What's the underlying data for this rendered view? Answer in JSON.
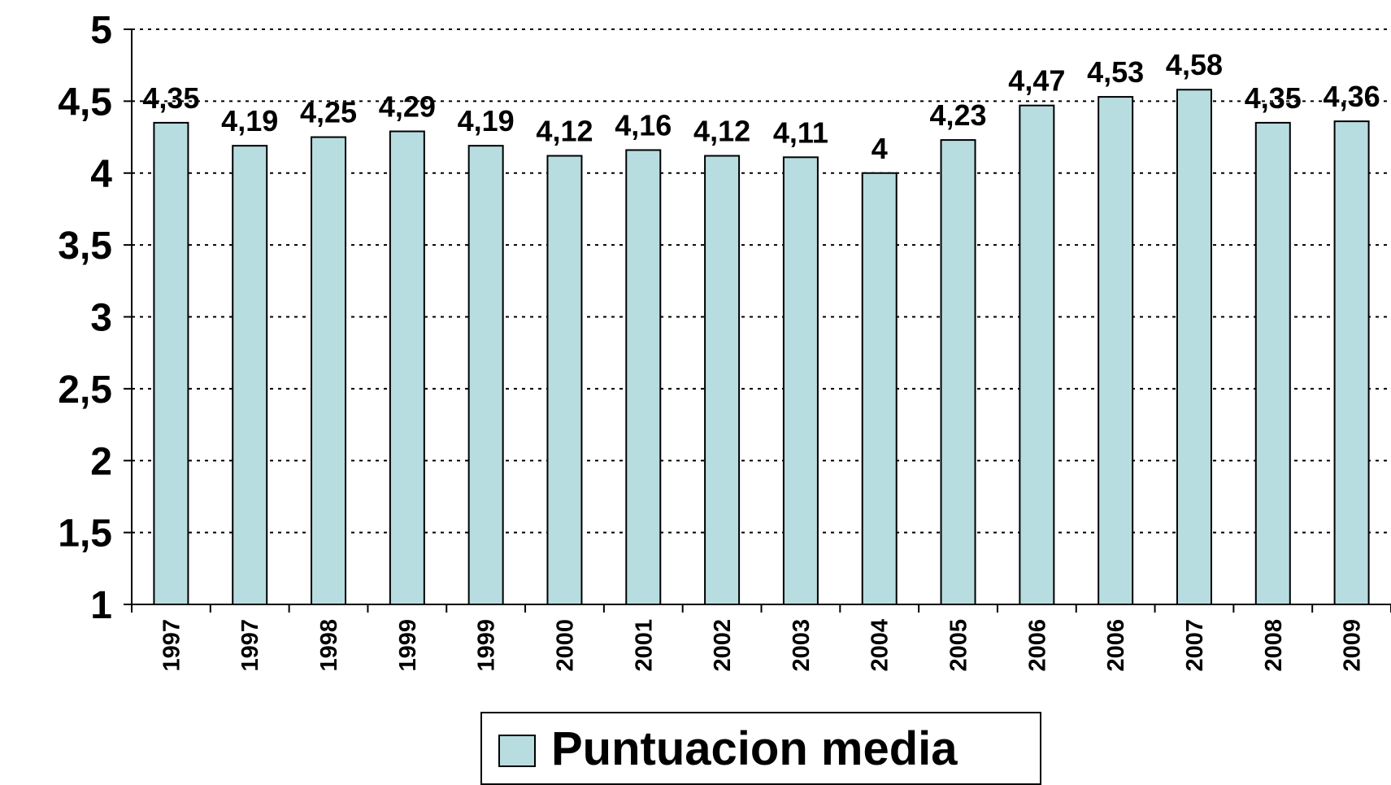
{
  "chart_data": {
    "type": "bar",
    "categories": [
      "1997",
      "1997",
      "1998",
      "1999",
      "1999",
      "2000",
      "2001",
      "2002",
      "2003",
      "2004",
      "2005",
      "2006",
      "2006",
      "2007",
      "2008",
      "2009"
    ],
    "series": [
      {
        "name": "Puntuacion media",
        "color": "#b7dde0",
        "values": [
          4.35,
          4.19,
          4.25,
          4.29,
          4.19,
          4.12,
          4.16,
          4.12,
          4.11,
          4,
          4.23,
          4.47,
          4.53,
          4.58,
          4.35,
          4.36
        ],
        "value_labels": [
          "4,35",
          "4,19",
          "4,25",
          "4,29",
          "4,19",
          "4,12",
          "4,16",
          "4,12",
          "4,11",
          "4",
          "4,23",
          "4,47",
          "4,53",
          "4,58",
          "4,35",
          "4,36"
        ]
      }
    ],
    "ylim": [
      1,
      5
    ],
    "yticks": [
      1,
      {
        "value": 1.5,
        "label": "1,5"
      },
      2,
      {
        "value": 2.5,
        "label": "2,5"
      },
      3,
      {
        "value": 3.5,
        "label": "3,5"
      },
      4,
      {
        "value": 4.5,
        "label": "4,5"
      },
      5
    ],
    "grid": true,
    "legend": "bottom"
  }
}
